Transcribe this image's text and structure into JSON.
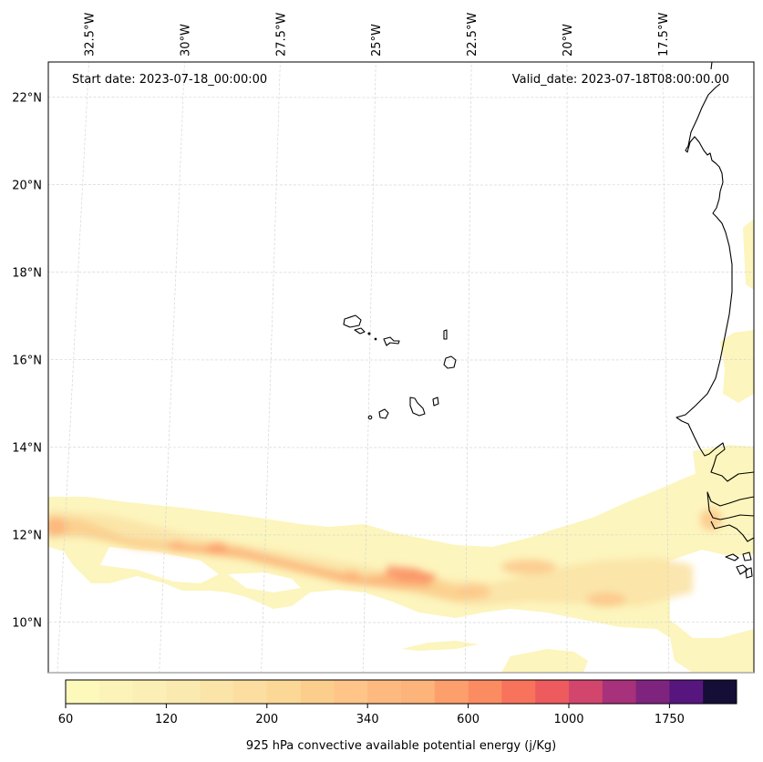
{
  "map": {
    "projection": "lambert-conformal",
    "extent": {
      "lon_min": -32.6,
      "lon_max": -15.2,
      "lat_min": 8.9,
      "lat_max": 22.8
    },
    "start_date_label": "Start date: 2023-07-18_00:00:00",
    "valid_date_label": "Valid_date: 2023-07-18T08:00:00.00",
    "lon_ticks": [
      {
        "value": -32.5,
        "label": "32.5°W"
      },
      {
        "value": -30,
        "label": "30°W"
      },
      {
        "value": -27.5,
        "label": "27.5°W"
      },
      {
        "value": -25,
        "label": "25°W"
      },
      {
        "value": -22.5,
        "label": "22.5°W"
      },
      {
        "value": -20,
        "label": "20°W"
      },
      {
        "value": -17.5,
        "label": "17.5°W"
      }
    ],
    "lat_ticks": [
      {
        "value": 22,
        "label": "22°N"
      },
      {
        "value": 20,
        "label": "20°N"
      },
      {
        "value": 18,
        "label": "18°N"
      },
      {
        "value": 16,
        "label": "16°N"
      },
      {
        "value": 14,
        "label": "14°N"
      },
      {
        "value": 12,
        "label": "12°N"
      },
      {
        "value": 10,
        "label": "10°N"
      }
    ],
    "gridlines": true,
    "features": [
      "west-africa-coastline",
      "cape-verde-islands"
    ]
  },
  "chart_data": {
    "type": "heatmap",
    "title": "",
    "variable": "925 hPa convective available potential energy",
    "units": "j/Kg",
    "colorbar_label": "925 hPa convective available potential energy (j/Kg)",
    "colorbar_placement": "bottom",
    "levels": [
      60,
      80,
      100,
      120,
      140,
      160,
      200,
      240,
      280,
      340,
      400,
      480,
      600,
      700,
      800,
      1000,
      1200,
      1400,
      1750,
      2100,
      2500
    ],
    "colorbar_ticks": [
      60,
      120,
      200,
      340,
      600,
      1000,
      1750
    ],
    "colors": [
      "#fcf9bb",
      "#fbf3b8",
      "#fbefb5",
      "#fbeab0",
      "#fbe4a7",
      "#fbdea0",
      "#fbd896",
      "#fcce8c",
      "#fec488",
      "#fdb97e",
      "#fdb47a",
      "#fd9f6c",
      "#fb8c62",
      "#f7735c",
      "#ed5b5e",
      "#d2466e",
      "#a7317a",
      "#7e247e",
      "#57167e",
      "#150e37"
    ],
    "regions": [
      {
        "name": "itcz-band-west",
        "lon_range": [
          -32.6,
          -23.0
        ],
        "lat_range": [
          10.6,
          12.9
        ],
        "max_value_approx": 700
      },
      {
        "name": "itcz-band-center",
        "lon_range": [
          -23.0,
          -19.0
        ],
        "lat_range": [
          9.6,
          12.4
        ],
        "max_value_approx": 800
      },
      {
        "name": "itcz-band-east",
        "lon_range": [
          -19.0,
          -15.2
        ],
        "lat_range": [
          9.0,
          13.8
        ],
        "max_value_approx": 400
      },
      {
        "name": "mauritania-coast-patch",
        "lon_range": [
          -15.8,
          -15.2
        ],
        "lat_range": [
          14.8,
          16.6
        ],
        "max_value_approx": 100
      }
    ]
  }
}
